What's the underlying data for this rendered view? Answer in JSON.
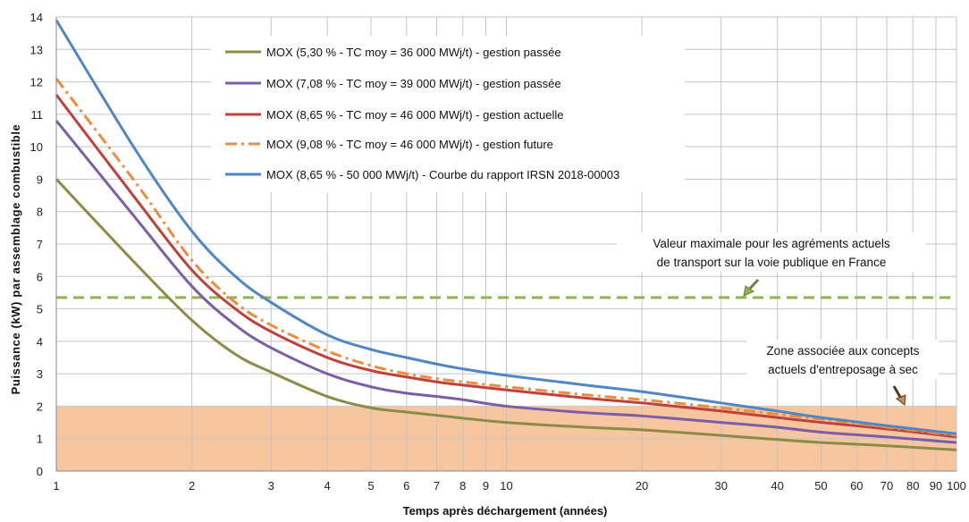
{
  "chart_data": {
    "type": "line",
    "title": "",
    "xlabel": "Temps après déchargement (années)",
    "ylabel": "Puissance (kW) par assemblage combustible",
    "x_scale": "log",
    "xlim": [
      1,
      100
    ],
    "ylim": [
      0,
      14
    ],
    "grid": true,
    "legend_position": "top-center",
    "x_ticks": [
      1,
      2,
      3,
      4,
      5,
      6,
      7,
      8,
      9,
      10,
      20,
      30,
      40,
      50,
      60,
      70,
      80,
      90,
      100
    ],
    "x_tick_labels": [
      "1",
      "2",
      "3",
      "4",
      "5",
      "6",
      "7",
      "8",
      "9",
      "10",
      "20",
      "30",
      "40",
      "50",
      "60",
      "70",
      "80",
      "90",
      "100"
    ],
    "y_ticks": [
      0,
      1,
      2,
      3,
      4,
      5,
      6,
      7,
      8,
      9,
      10,
      11,
      12,
      13,
      14
    ],
    "y_tick_labels": [
      "0",
      "1",
      "2",
      "3",
      "4",
      "5",
      "6",
      "7",
      "8",
      "9",
      "10",
      "11",
      "12",
      "13",
      "14"
    ],
    "series": [
      {
        "name": "MOX (5,30 % - TC moy = 36 000 MWj/t) - gestion passée",
        "color": "#8c8c46",
        "style": "solid",
        "x": [
          1,
          1.5,
          2,
          2.5,
          3,
          4,
          5,
          6,
          7,
          8,
          10,
          15,
          20,
          30,
          40,
          50,
          70,
          100
        ],
        "y": [
          9.0,
          6.4,
          4.65,
          3.6,
          3.05,
          2.3,
          1.95,
          1.82,
          1.72,
          1.63,
          1.5,
          1.35,
          1.27,
          1.1,
          0.97,
          0.88,
          0.78,
          0.65
        ]
      },
      {
        "name": "MOX (7,08 % - TC moy = 39 000 MWj/t) - gestion passée",
        "color": "#7b5da8",
        "style": "solid",
        "x": [
          1,
          1.5,
          2,
          2.5,
          3,
          4,
          5,
          6,
          7,
          8,
          10,
          15,
          20,
          30,
          40,
          50,
          70,
          100
        ],
        "y": [
          10.8,
          7.8,
          5.7,
          4.5,
          3.8,
          3.0,
          2.6,
          2.4,
          2.3,
          2.2,
          2.0,
          1.8,
          1.7,
          1.5,
          1.35,
          1.2,
          1.05,
          0.88
        ]
      },
      {
        "name": "MOX (8,65 % - TC moy = 46 000 MWj/t) - gestion actuelle",
        "color": "#c0403a",
        "style": "solid",
        "x": [
          1,
          1.5,
          2,
          2.5,
          3,
          4,
          5,
          6,
          7,
          8,
          10,
          15,
          20,
          30,
          40,
          50,
          70,
          100
        ],
        "y": [
          11.6,
          8.4,
          6.2,
          5.0,
          4.3,
          3.5,
          3.1,
          2.9,
          2.75,
          2.65,
          2.5,
          2.25,
          2.1,
          1.85,
          1.65,
          1.5,
          1.3,
          1.05
        ]
      },
      {
        "name": "MOX (9,08 % - TC moy = 46 000 MWj/t) - gestion future",
        "color": "#f08a3c",
        "style": "dashdot",
        "x": [
          1,
          1.5,
          2,
          2.5,
          3,
          4,
          5,
          6,
          7,
          8,
          10,
          15,
          20,
          30,
          40,
          50,
          70,
          100
        ],
        "y": [
          12.1,
          8.9,
          6.5,
          5.2,
          4.5,
          3.7,
          3.25,
          3.0,
          2.85,
          2.75,
          2.6,
          2.35,
          2.2,
          1.95,
          1.75,
          1.6,
          1.35,
          1.1
        ]
      },
      {
        "name": "MOX (8,65 % - 50 000 MWj/t) - Courbe du rapport IRSN 2018-00003",
        "color": "#4f86c6",
        "style": "solid",
        "x": [
          1,
          1.5,
          2,
          2.5,
          3,
          4,
          5,
          6,
          7,
          8,
          10,
          15,
          20,
          30,
          40,
          50,
          70,
          100
        ],
        "y": [
          13.9,
          9.9,
          7.4,
          6.0,
          5.2,
          4.2,
          3.75,
          3.5,
          3.3,
          3.15,
          2.95,
          2.65,
          2.45,
          2.1,
          1.85,
          1.65,
          1.4,
          1.15
        ]
      }
    ],
    "reference_line": {
      "y": 5.35,
      "color": "#8db74a",
      "style": "dashed",
      "label_line1": "Valeur maximale pour les agréments actuels",
      "label_line2": "de transport sur la voie publique en France"
    },
    "shaded_band": {
      "y0": 0,
      "y1": 2,
      "color": "#f5c6a0",
      "label_line1": "Zone associée aux concepts",
      "label_line2": "actuels d'entreposage à sec"
    }
  }
}
